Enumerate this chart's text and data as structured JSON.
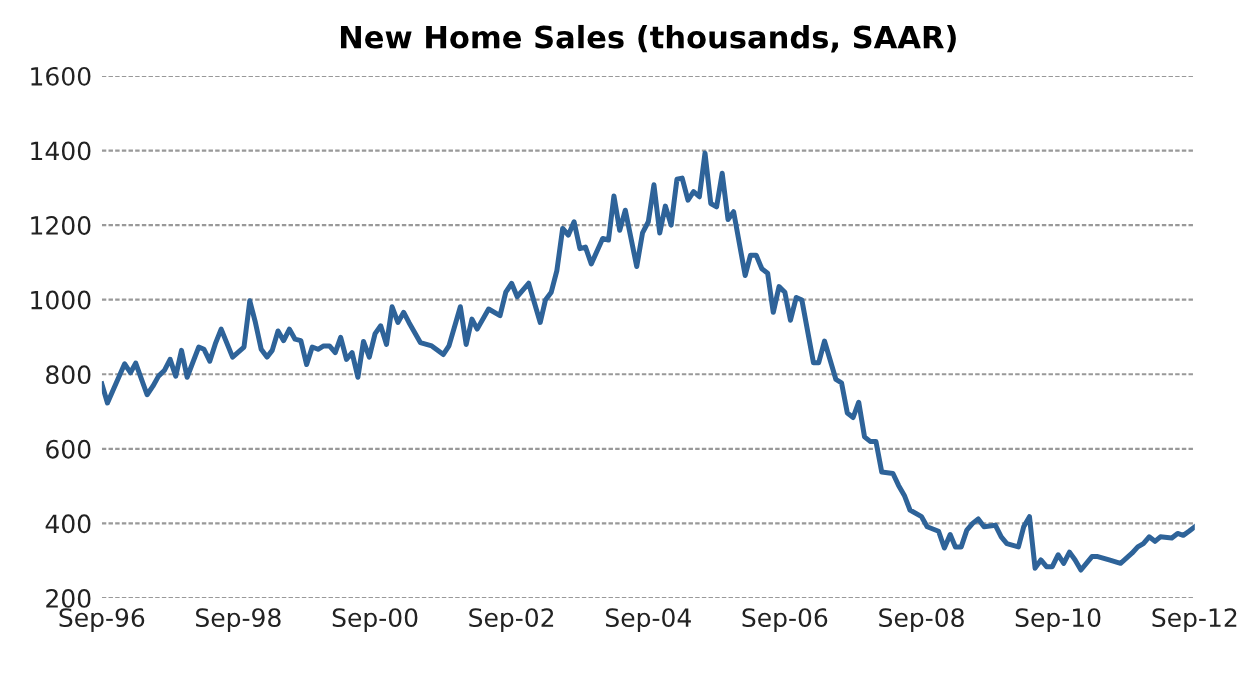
{
  "chart_data": {
    "type": "line",
    "title": "New Home Sales (thousands, SAAR)",
    "x": [
      "1996-09",
      "1996-10",
      "1997-01",
      "1997-02",
      "1997-03",
      "1997-05",
      "1997-06",
      "1997-07",
      "1997-08",
      "1997-09",
      "1997-10",
      "1997-11",
      "1997-12",
      "1998-02",
      "1998-03",
      "1998-04",
      "1998-05",
      "1998-06",
      "1998-08",
      "1998-10",
      "1998-11",
      "1998-12",
      "1999-01",
      "1999-02",
      "1999-03",
      "1999-04",
      "1999-05",
      "1999-06",
      "1999-07",
      "1999-08",
      "1999-09",
      "1999-10",
      "1999-11",
      "1999-12",
      "2000-01",
      "2000-02",
      "2000-03",
      "2000-04",
      "2000-05",
      "2000-06",
      "2000-07",
      "2000-08",
      "2000-09",
      "2000-10",
      "2000-11",
      "2000-12",
      "2001-01",
      "2001-02",
      "2001-03",
      "2001-05",
      "2001-07",
      "2001-09",
      "2001-10",
      "2001-12",
      "2002-01",
      "2002-02",
      "2002-03",
      "2002-05",
      "2002-07",
      "2002-08",
      "2002-09",
      "2002-10",
      "2002-12",
      "2003-02",
      "2003-03",
      "2003-04",
      "2003-05",
      "2003-06",
      "2003-07",
      "2003-08",
      "2003-09",
      "2003-10",
      "2003-11",
      "2004-01",
      "2004-02",
      "2004-03",
      "2004-04",
      "2004-05",
      "2004-07",
      "2004-08",
      "2004-09",
      "2004-10",
      "2004-11",
      "2004-12",
      "2005-01",
      "2005-02",
      "2005-03",
      "2005-04",
      "2005-05",
      "2005-06",
      "2005-07",
      "2005-08",
      "2005-09",
      "2005-10",
      "2005-11",
      "2005-12",
      "2006-02",
      "2006-03",
      "2006-04",
      "2006-05",
      "2006-06",
      "2006-07",
      "2006-08",
      "2006-09",
      "2006-10",
      "2006-11",
      "2006-12",
      "2007-02",
      "2007-03",
      "2007-04",
      "2007-06",
      "2007-07",
      "2007-08",
      "2007-09",
      "2007-10",
      "2007-11",
      "2007-12",
      "2008-01",
      "2008-02",
      "2008-04",
      "2008-05",
      "2008-06",
      "2008-07",
      "2008-09",
      "2008-10",
      "2008-12",
      "2009-01",
      "2009-02",
      "2009-03",
      "2009-04",
      "2009-05",
      "2009-06",
      "2009-07",
      "2009-08",
      "2009-10",
      "2009-11",
      "2009-12",
      "2010-02",
      "2010-03",
      "2010-04",
      "2010-05",
      "2010-06",
      "2010-07",
      "2010-08",
      "2010-09",
      "2010-10",
      "2010-11",
      "2010-12",
      "2011-01",
      "2011-03",
      "2011-04",
      "2011-06",
      "2011-08",
      "2011-10",
      "2011-11",
      "2011-12",
      "2012-01",
      "2012-02",
      "2012-03",
      "2012-05",
      "2012-06",
      "2012-07",
      "2012-08",
      "2012-09"
    ],
    "series": [
      {
        "color": "#2e6399",
        "values": [
          774,
          723,
          828,
          804,
          830,
          745,
          768,
          795,
          810,
          840,
          795,
          864,
          792,
          873,
          867,
          835,
          882,
          921,
          846,
          873,
          997,
          939,
          867,
          846,
          864,
          916,
          890,
          921,
          894,
          890,
          826,
          873,
          867,
          876,
          876,
          858,
          899,
          840,
          858,
          792,
          888,
          846,
          909,
          930,
          880,
          981,
          939,
          966,
          939,
          885,
          876,
          853,
          876,
          981,
          880,
          948,
          921,
          975,
          957,
          1020,
          1044,
          1008,
          1044,
          939,
          999,
          1020,
          1078,
          1191,
          1173,
          1209,
          1137,
          1141,
          1096,
          1164,
          1160,
          1278,
          1186,
          1240,
          1089,
          1179,
          1209,
          1308,
          1179,
          1251,
          1200,
          1323,
          1326,
          1267,
          1290,
          1276,
          1393,
          1258,
          1249,
          1339,
          1215,
          1236,
          1065,
          1119,
          1119,
          1083,
          1071,
          966,
          1035,
          1020,
          945,
          1006,
          999,
          831,
          831,
          889,
          786,
          777,
          696,
          684,
          725,
          632,
          620,
          620,
          538,
          534,
          502,
          475,
          436,
          418,
          391,
          379,
          334,
          370,
          337,
          337,
          382,
          400,
          412,
          391,
          395,
          364,
          346,
          337,
          391,
          418,
          280,
          302,
          284,
          284,
          316,
          293,
          323,
          302,
          275,
          311,
          311,
          302,
          293,
          320,
          337,
          346,
          364,
          352,
          364,
          361,
          373,
          368,
          379,
          391
        ]
      }
    ],
    "xlim": [
      "1996-09",
      "2012-09"
    ],
    "xticks": [
      {
        "value": "1996-09",
        "label": "Sep-96"
      },
      {
        "value": "1998-09",
        "label": "Sep-98"
      },
      {
        "value": "2000-09",
        "label": "Sep-00"
      },
      {
        "value": "2002-09",
        "label": "Sep-02"
      },
      {
        "value": "2004-09",
        "label": "Sep-04"
      },
      {
        "value": "2006-09",
        "label": "Sep-06"
      },
      {
        "value": "2008-09",
        "label": "Sep-08"
      },
      {
        "value": "2010-09",
        "label": "Sep-10"
      },
      {
        "value": "2012-09",
        "label": "Sep-12"
      }
    ],
    "ylim": [
      200,
      1600
    ],
    "yticks": [
      200,
      400,
      600,
      800,
      1000,
      1200,
      1400,
      1600
    ],
    "grid": "y",
    "marker": "none",
    "line_style": "solid"
  }
}
